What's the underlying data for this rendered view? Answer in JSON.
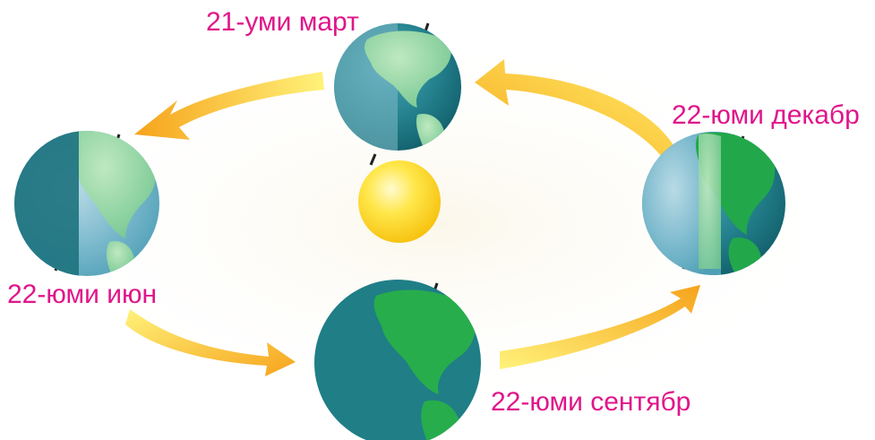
{
  "diagram": {
    "labels": {
      "march": "21-уми март",
      "june": "22-юми июн",
      "september": "22-юми сентябр",
      "december": "22-юми декабр"
    },
    "colors": {
      "label": "#e0158a",
      "arrow_light": "#ffe34a",
      "arrow_dark": "#f5a21a",
      "ocean": "#1f7f86",
      "land": "#1fae4a",
      "sun": "#ffd21c",
      "background_glow": "#fbf8ee"
    }
  }
}
